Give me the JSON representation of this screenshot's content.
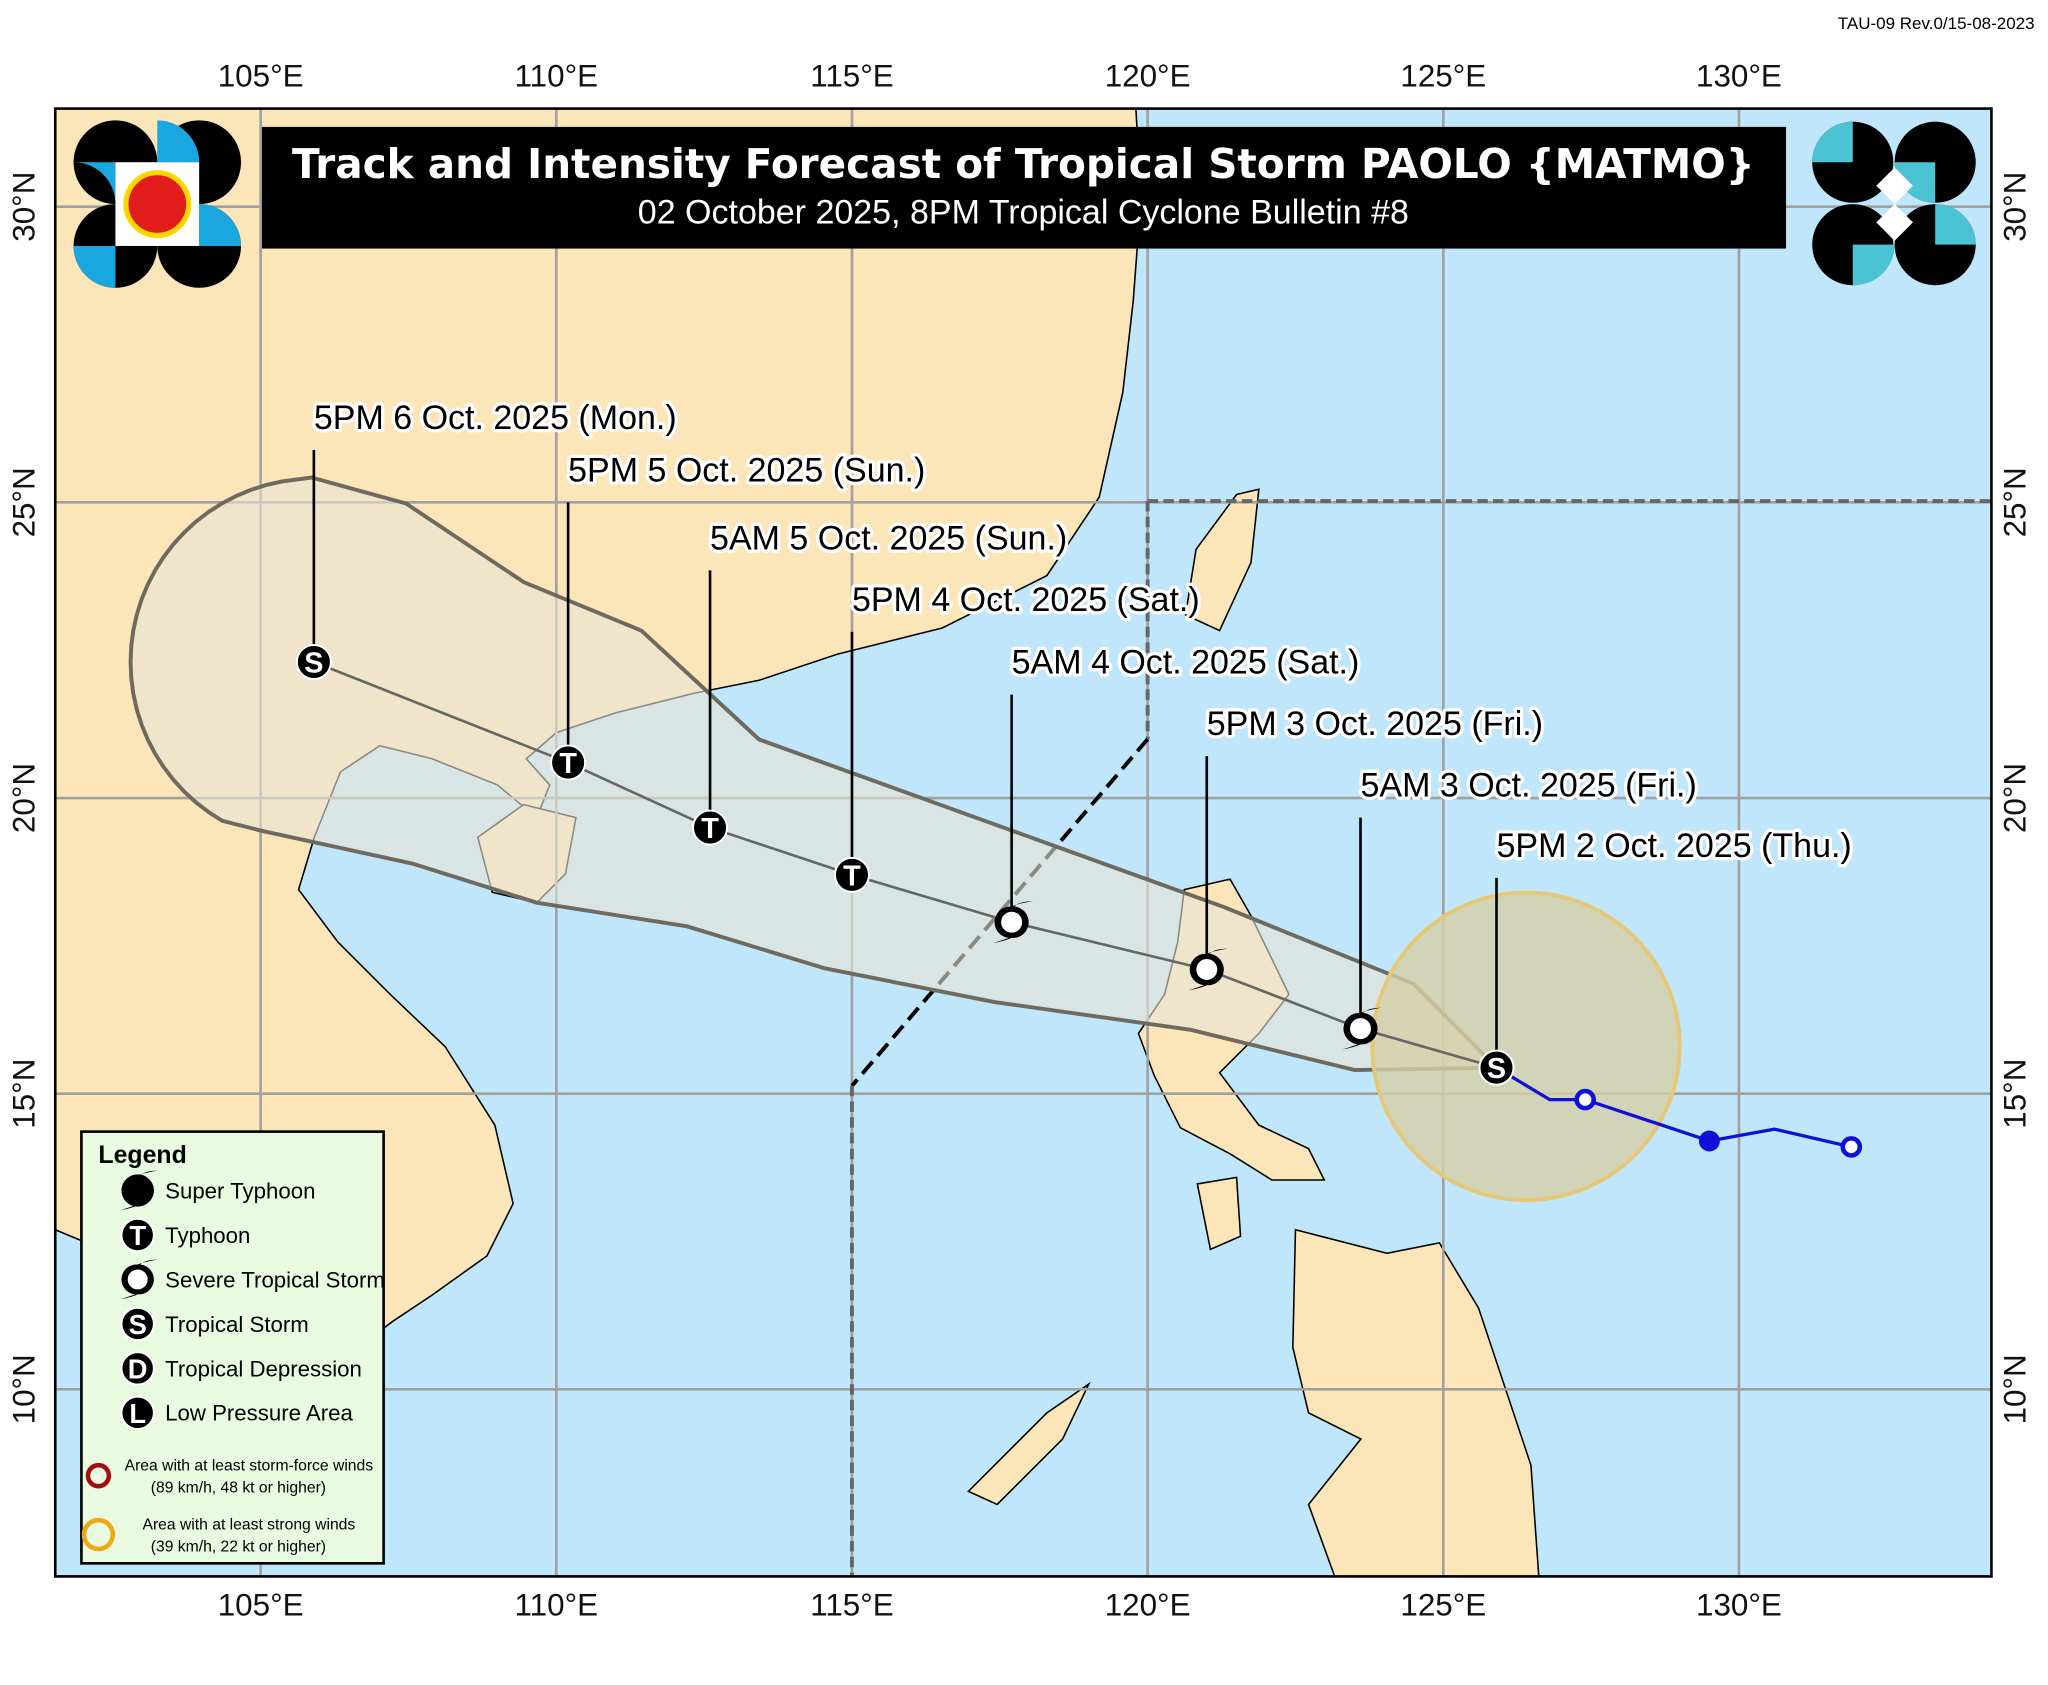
{
  "revision_stamp": "TAU-09 Rev.0/15-08-2023",
  "header": {
    "title": "Track and Intensity Forecast of Tropical Storm PAOLO {MATMO}",
    "subtitle": "02 October 2025, 8PM Tropical Cyclone Bulletin #8"
  },
  "logos": {
    "left": "PAGASA 1865",
    "right": "DOST"
  },
  "map": {
    "lon_range": [
      101.5,
      134.25
    ],
    "lat_range": [
      6.8,
      31.7
    ],
    "grid_step_deg": 5,
    "lon_ticks": [
      "105°E",
      "110°E",
      "115°E",
      "120°E",
      "125°E",
      "130°E"
    ],
    "lat_ticks": [
      "10°N",
      "15°N",
      "20°N",
      "25°N",
      "30°N"
    ],
    "colors": {
      "sea": "#c0e6fb",
      "land": "#fce5b8",
      "cone": "#e8e4d6",
      "strong_wind": "#d6cfa6",
      "past_track": "#1010d8",
      "grid": "#a0a0a0"
    }
  },
  "forecast": [
    {
      "label": "5PM 2 Oct. 2025 (Thu.)",
      "lon": 125.9,
      "lat": 15.44,
      "category": "S"
    },
    {
      "label": "5AM 3 Oct. 2025 (Fri.)",
      "lon": 123.6,
      "lat": 16.1,
      "category": "STS"
    },
    {
      "label": "5PM 3 Oct. 2025 (Fri.)",
      "lon": 121.0,
      "lat": 17.1,
      "category": "STS"
    },
    {
      "label": "5AM 4 Oct. 2025 (Sat.)",
      "lon": 117.7,
      "lat": 17.9,
      "category": "STS"
    },
    {
      "label": "5PM 4 Oct. 2025 (Sat.)",
      "lon": 115.0,
      "lat": 18.7,
      "category": "T"
    },
    {
      "label": "5AM 5 Oct. 2025 (Sun.)",
      "lon": 112.6,
      "lat": 19.5,
      "category": "T"
    },
    {
      "label": "5PM 5 Oct. 2025 (Sun.)",
      "lon": 110.2,
      "lat": 20.6,
      "category": "T"
    },
    {
      "label": "5PM 6 Oct. 2025 (Mon.)",
      "lon": 105.9,
      "lat": 22.3,
      "category": "S"
    }
  ],
  "past_track": [
    {
      "lon": 131.9,
      "lat": 14.1,
      "marker": "open"
    },
    {
      "lon": 130.6,
      "lat": 14.4,
      "marker": "none"
    },
    {
      "lon": 129.5,
      "lat": 14.2,
      "marker": "filled"
    },
    {
      "lon": 127.4,
      "lat": 14.9,
      "marker": "open"
    },
    {
      "lon": 126.8,
      "lat": 14.9,
      "marker": "none"
    },
    {
      "lon": 125.9,
      "lat": 15.44,
      "marker": "none"
    }
  ],
  "strong_wind_area": {
    "lon": 126.4,
    "lat": 15.8,
    "radius_deg": 2.6
  },
  "cone": {
    "upper": [
      [
        125.9,
        15.44
      ],
      [
        124.49,
        16.86
      ],
      [
        121.28,
        18.16
      ],
      [
        113.43,
        20.99
      ],
      [
        111.44,
        22.83
      ],
      [
        109.45,
        23.65
      ],
      [
        107.46,
        24.98
      ],
      [
        105.86,
        25.42
      ]
    ],
    "end_radius_deg": 3.1,
    "lower": [
      [
        105.0,
        19.45
      ],
      [
        107.57,
        18.89
      ],
      [
        109.67,
        18.23
      ],
      [
        112.21,
        17.83
      ],
      [
        114.54,
        17.12
      ],
      [
        117.41,
        16.55
      ],
      [
        120.73,
        16.08
      ],
      [
        123.5,
        15.4
      ],
      [
        125.9,
        15.44
      ]
    ]
  },
  "legend": {
    "title": "Legend",
    "items": [
      {
        "symbol": "super-typhoon",
        "label": "Super Typhoon"
      },
      {
        "symbol": "T",
        "label": "Typhoon"
      },
      {
        "symbol": "STS",
        "label": "Severe Tropical Storm"
      },
      {
        "symbol": "S",
        "label": "Tropical Storm"
      },
      {
        "symbol": "D",
        "label": "Tropical Depression"
      },
      {
        "symbol": "L",
        "label": "Low Pressure Area"
      }
    ],
    "areas": [
      {
        "color": "#a01010",
        "line1": "Area with at least storm-force winds",
        "line2": "(89 km/h, 48 kt or higher)"
      },
      {
        "color": "#f0a818",
        "line1": "Area with at least strong winds",
        "line2": "(39 km/h, 22 kt or higher)"
      }
    ]
  }
}
